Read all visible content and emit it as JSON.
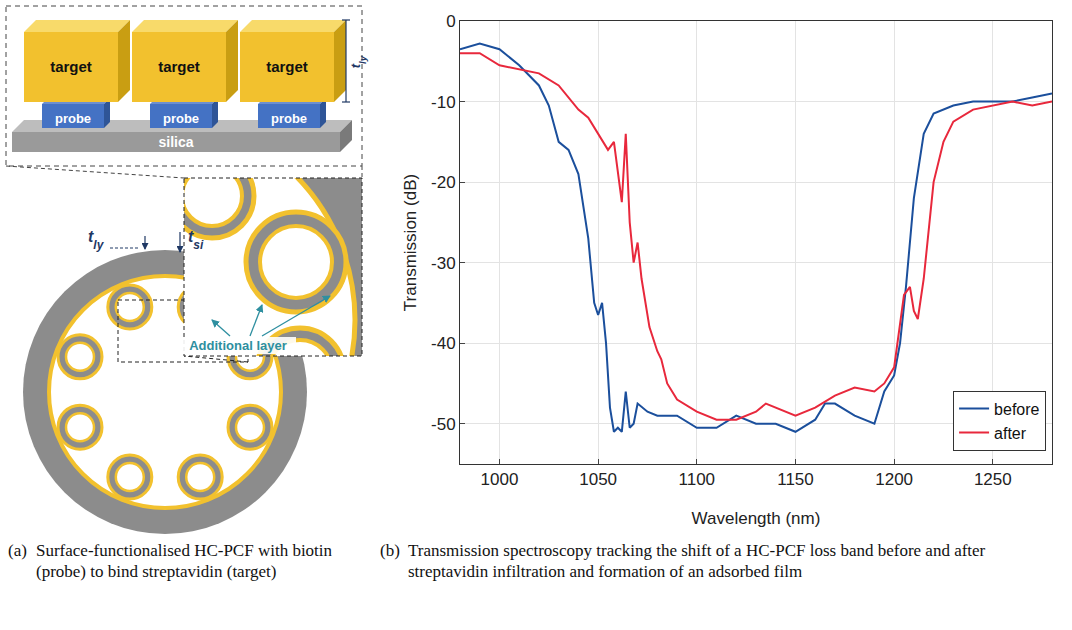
{
  "diagram": {
    "target_labels": [
      "target",
      "target",
      "target"
    ],
    "probe_labels": [
      "probe",
      "probe",
      "probe"
    ],
    "substrate_label": "silica",
    "inset_thickness": {
      "base": "t",
      "sub": "ly"
    },
    "layer_thickness": {
      "base": "t",
      "sub": "ly"
    },
    "silica_thickness": {
      "base": "t",
      "sub": "si"
    },
    "callout": "Additional layer"
  },
  "captions": [
    {
      "label": "(a)",
      "text": "Surface-functionalised HC-PCF with biotin (probe) to bind streptavidin (target)"
    },
    {
      "label": "(b)",
      "text": "Transmission spectroscopy tracking the shift of a HC-PCF loss band before and after streptavidin infiltration and formation of an adsorbed film"
    }
  ],
  "chart_data": {
    "type": "line",
    "x_label": "Wavelength (nm)",
    "y_label": "Transmission (dB)",
    "xlim": [
      980,
      1280
    ],
    "ylim": [
      -55,
      0
    ],
    "xticks": [
      1000,
      1050,
      1100,
      1150,
      1200,
      1250
    ],
    "yticks": [
      -50,
      -40,
      -30,
      -20,
      -10,
      0
    ],
    "grid": true,
    "legend": "bottom right",
    "series": [
      {
        "name": "before",
        "color": "#1b4f9c",
        "x": [
          980,
          990,
          1000,
          1010,
          1020,
          1025,
          1030,
          1035,
          1040,
          1045,
          1048,
          1050,
          1052,
          1054,
          1056,
          1058,
          1060,
          1062,
          1064,
          1066,
          1068,
          1070,
          1075,
          1080,
          1090,
          1100,
          1110,
          1120,
          1130,
          1140,
          1150,
          1160,
          1165,
          1170,
          1180,
          1190,
          1195,
          1200,
          1203,
          1206,
          1210,
          1215,
          1220,
          1230,
          1240,
          1250,
          1260,
          1270,
          1280
        ],
        "values": [
          -3.5,
          -2.8,
          -3.5,
          -5.5,
          -8,
          -10.5,
          -15,
          -16,
          -19,
          -27,
          -35,
          -36.5,
          -35,
          -40,
          -48,
          -51,
          -50.5,
          -51,
          -46,
          -50.5,
          -50,
          -47.5,
          -48.5,
          -49,
          -49,
          -50.5,
          -50.5,
          -49,
          -50,
          -50,
          -51,
          -49.5,
          -47.5,
          -47.5,
          -49,
          -50,
          -46,
          -44,
          -40,
          -33,
          -22,
          -14,
          -11.5,
          -10.5,
          -10,
          -10,
          -10,
          -9.5,
          -9
        ]
      },
      {
        "name": "after",
        "color": "#e8283c",
        "x": [
          980,
          990,
          1000,
          1010,
          1020,
          1030,
          1040,
          1045,
          1050,
          1055,
          1058,
          1060,
          1062,
          1064,
          1066,
          1068,
          1070,
          1072,
          1076,
          1080,
          1082,
          1085,
          1090,
          1100,
          1110,
          1120,
          1130,
          1135,
          1140,
          1150,
          1160,
          1170,
          1180,
          1190,
          1195,
          1200,
          1205,
          1208,
          1210,
          1212,
          1215,
          1220,
          1225,
          1230,
          1240,
          1250,
          1260,
          1270,
          1280
        ],
        "values": [
          -4,
          -4,
          -5.5,
          -6,
          -6.5,
          -8,
          -11,
          -12,
          -14,
          -16,
          -15,
          -19,
          -22.5,
          -14,
          -25,
          -30,
          -27.5,
          -32,
          -38,
          -41,
          -42,
          -45,
          -47,
          -48.5,
          -49.5,
          -49.5,
          -48.5,
          -47.5,
          -48,
          -49,
          -48,
          -46.5,
          -45.5,
          -46,
          -45,
          -43,
          -34,
          -33,
          -36,
          -37,
          -32,
          -20,
          -15,
          -12.5,
          -11,
          -10.5,
          -10,
          -10.5,
          -10
        ]
      }
    ]
  }
}
